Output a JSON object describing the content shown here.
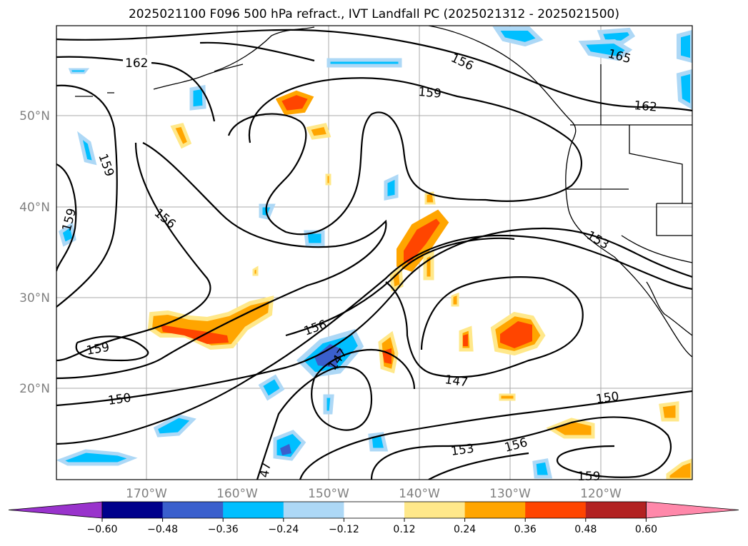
{
  "title": "2025021100 F096 500 hPa refract., IVT Landfall PC (2025021312 - 2025021500)",
  "longitude_labels": [
    "170°W",
    "160°W",
    "150°W",
    "140°W",
    "130°W",
    "120°W"
  ],
  "latitude_labels": [
    "50°N",
    "40°N",
    "30°N",
    "20°N"
  ],
  "contour_labels": [
    "162",
    "159",
    "159",
    "156",
    "159",
    "159",
    "156",
    "153",
    "156",
    "147",
    "147",
    "150",
    "150",
    "153",
    "156",
    "159",
    "165",
    "162",
    "47"
  ],
  "colorbar": {
    "ticks": [
      "−0.60",
      "−0.48",
      "−0.36",
      "−0.24",
      "−0.12",
      "0.12",
      "0.24",
      "0.36",
      "0.48",
      "0.60"
    ],
    "colors": [
      "#9933cc",
      "#00008b",
      "#3a5fcd",
      "#00bfff",
      "#add8f6",
      "#ffffff",
      "#ffe88a",
      "#ffa500",
      "#ff4500",
      "#b22222",
      "#ff88aa"
    ]
  },
  "colors": {
    "grid": "#aaaaaa",
    "contour": "#000000",
    "axis_label": "#808080"
  }
}
